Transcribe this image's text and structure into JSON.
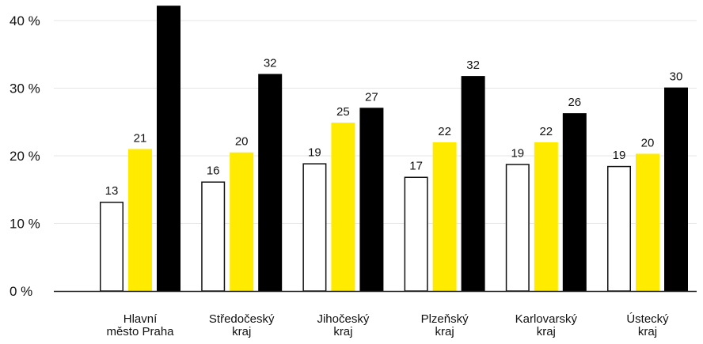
{
  "chart_data": {
    "type": "bar",
    "categories": [
      [
        "Hlavní",
        "město Praha"
      ],
      [
        "Středočeský",
        "kraj"
      ],
      [
        "Jihočeský",
        "kraj"
      ],
      [
        "Plzeňský",
        "kraj"
      ],
      [
        "Karlovarský",
        "kraj"
      ],
      [
        "Ústecký",
        "kraj"
      ]
    ],
    "series": [
      {
        "values": [
          13,
          16,
          19,
          17,
          19,
          19
        ],
        "color": "#ffffff",
        "stroke": "#111111",
        "exact": [
          13.2,
          16.2,
          18.9,
          16.9,
          18.8,
          18.5
        ]
      },
      {
        "values": [
          21,
          20,
          25,
          22,
          22,
          20
        ],
        "color": "#ffeb00",
        "stroke": "none",
        "exact": [
          21.0,
          20.5,
          24.9,
          22.0,
          22.0,
          20.3
        ]
      },
      {
        "values": [
          42,
          32,
          27,
          32,
          26,
          30
        ],
        "color": "#000000",
        "stroke": "none",
        "exact": [
          42.2,
          32.1,
          27.1,
          31.8,
          26.3,
          30.1
        ]
      }
    ],
    "y_ticks": [
      "0 %",
      "10 %",
      "20 %",
      "30 %",
      "40 %"
    ],
    "y_tick_values": [
      0,
      10,
      20,
      30,
      40
    ],
    "ylim": [
      0,
      42.2
    ],
    "grid": true,
    "data_labels": [
      [
        "13",
        "21",
        ""
      ],
      [
        "16",
        "20",
        "32"
      ],
      [
        "19",
        "25",
        "27"
      ],
      [
        "17",
        "22",
        "32"
      ],
      [
        "19",
        "22",
        "26"
      ],
      [
        "19",
        "20",
        "30"
      ]
    ]
  }
}
